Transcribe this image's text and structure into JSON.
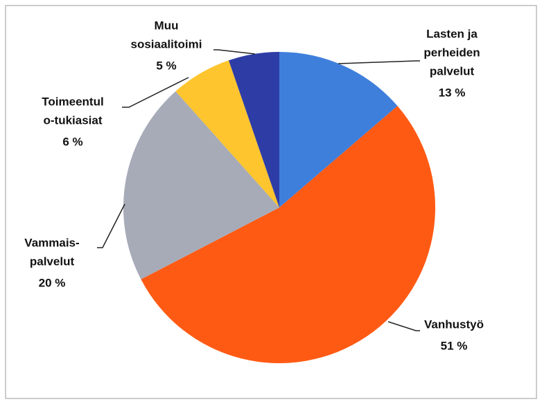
{
  "chart_data": {
    "type": "pie",
    "labels": [
      [
        "Lasten ja",
        "perheiden",
        "palvelut"
      ],
      [
        "Vanhustyö"
      ],
      [
        "Vammais-",
        "palvelut"
      ],
      [
        "Toimeentul",
        "o-tukiasiat"
      ],
      [
        "Muu",
        "sosiaalitoimi"
      ]
    ],
    "values": [
      13,
      51,
      20,
      6,
      5
    ],
    "value_labels": [
      "13 %",
      "51 %",
      "20 %",
      "6 %",
      "5 %"
    ],
    "colors": [
      "#3f7fdc",
      "#ff5a14",
      "#a7abb8",
      "#ffc52e",
      "#2e3da6"
    ]
  }
}
